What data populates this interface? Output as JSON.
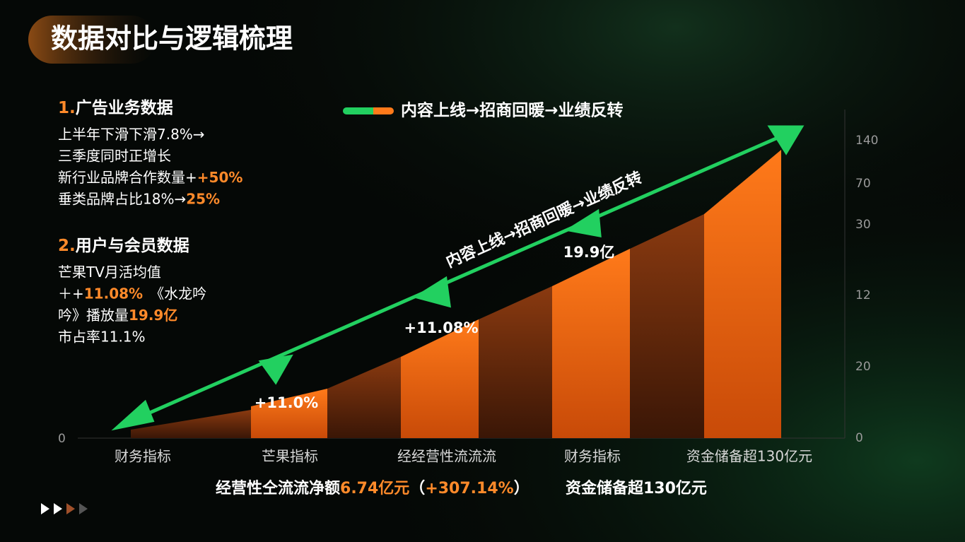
{
  "title": "数据对比与逻辑梳理",
  "sections": [
    {
      "number": "1.",
      "heading": "广告业务数据",
      "lines": [
        [
          "上半年下滑下滑7.8%→"
        ],
        [
          "三季度同时正增长"
        ],
        [
          "新行业品牌合作数量+",
          "+50%"
        ],
        [
          "垂类品牌占比18%→",
          "25%"
        ]
      ]
    },
    {
      "number": "2.",
      "heading": "用户与会员数据",
      "lines": [
        [
          "芒果TV月活均值"
        ],
        [
          " ＋+",
          "11.08%",
          "　《水龙吟"
        ],
        [
          "吟》播放量",
          "19.9亿"
        ],
        [
          "市占率11.1%"
        ]
      ]
    }
  ],
  "legend": "内容上线→招商回暖→业绩反转",
  "arrow_label": "内容上线→招商回暖→业绩反转",
  "point_labels": [
    "+11.0%",
    "+11.08%",
    "19.9亿"
  ],
  "left_axis_label": "0",
  "right_axis_labels": [
    "140",
    "70",
    "30",
    "12",
    "20",
    "0"
  ],
  "x_labels": [
    "财务指标",
    "芒果指标",
    "经经营性流流流",
    "财务指标",
    "资金储备超130亿元"
  ],
  "footer": [
    [
      "经营性仝流流净额",
      "6.74亿元",
      "（",
      "+307.14%",
      "）"
    ],
    [
      "资金储备超130亿元"
    ]
  ]
}
